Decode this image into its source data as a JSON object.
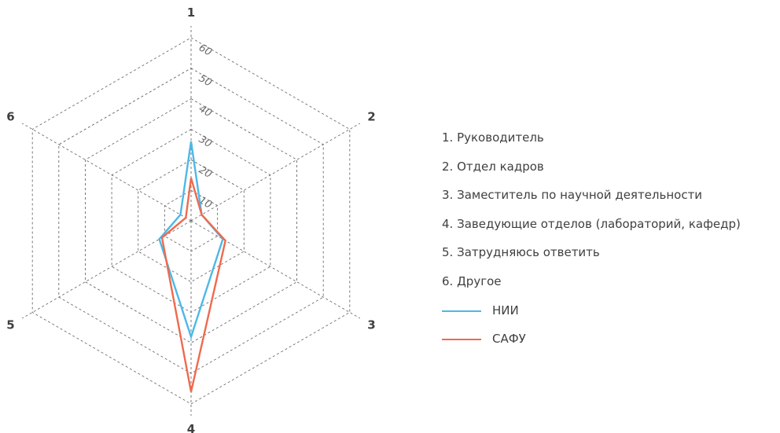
{
  "chart_data": {
    "type": "radar",
    "axes": [
      "1",
      "2",
      "3",
      "4",
      "5",
      "6"
    ],
    "ticks": [
      10,
      20,
      30,
      40,
      50,
      60
    ],
    "range": [
      0,
      60
    ],
    "grid": true,
    "series": [
      {
        "name": "НИИ",
        "color": "#4db8e8",
        "values": [
          26,
          4,
          12,
          38,
          12,
          4
        ]
      },
      {
        "name": "САФУ",
        "color": "#ef6a4e",
        "values": [
          14,
          4,
          13,
          56,
          11,
          2
        ]
      }
    ]
  },
  "legend": {
    "items": [
      "1. Руководитель",
      "2. Отдел кадров",
      "3. Заместитель по научной деятельности",
      "4. Заведующие отделов (лабораторий, кафедр)",
      "5. Затрудняюсь ответить",
      "6. Другое"
    ]
  }
}
